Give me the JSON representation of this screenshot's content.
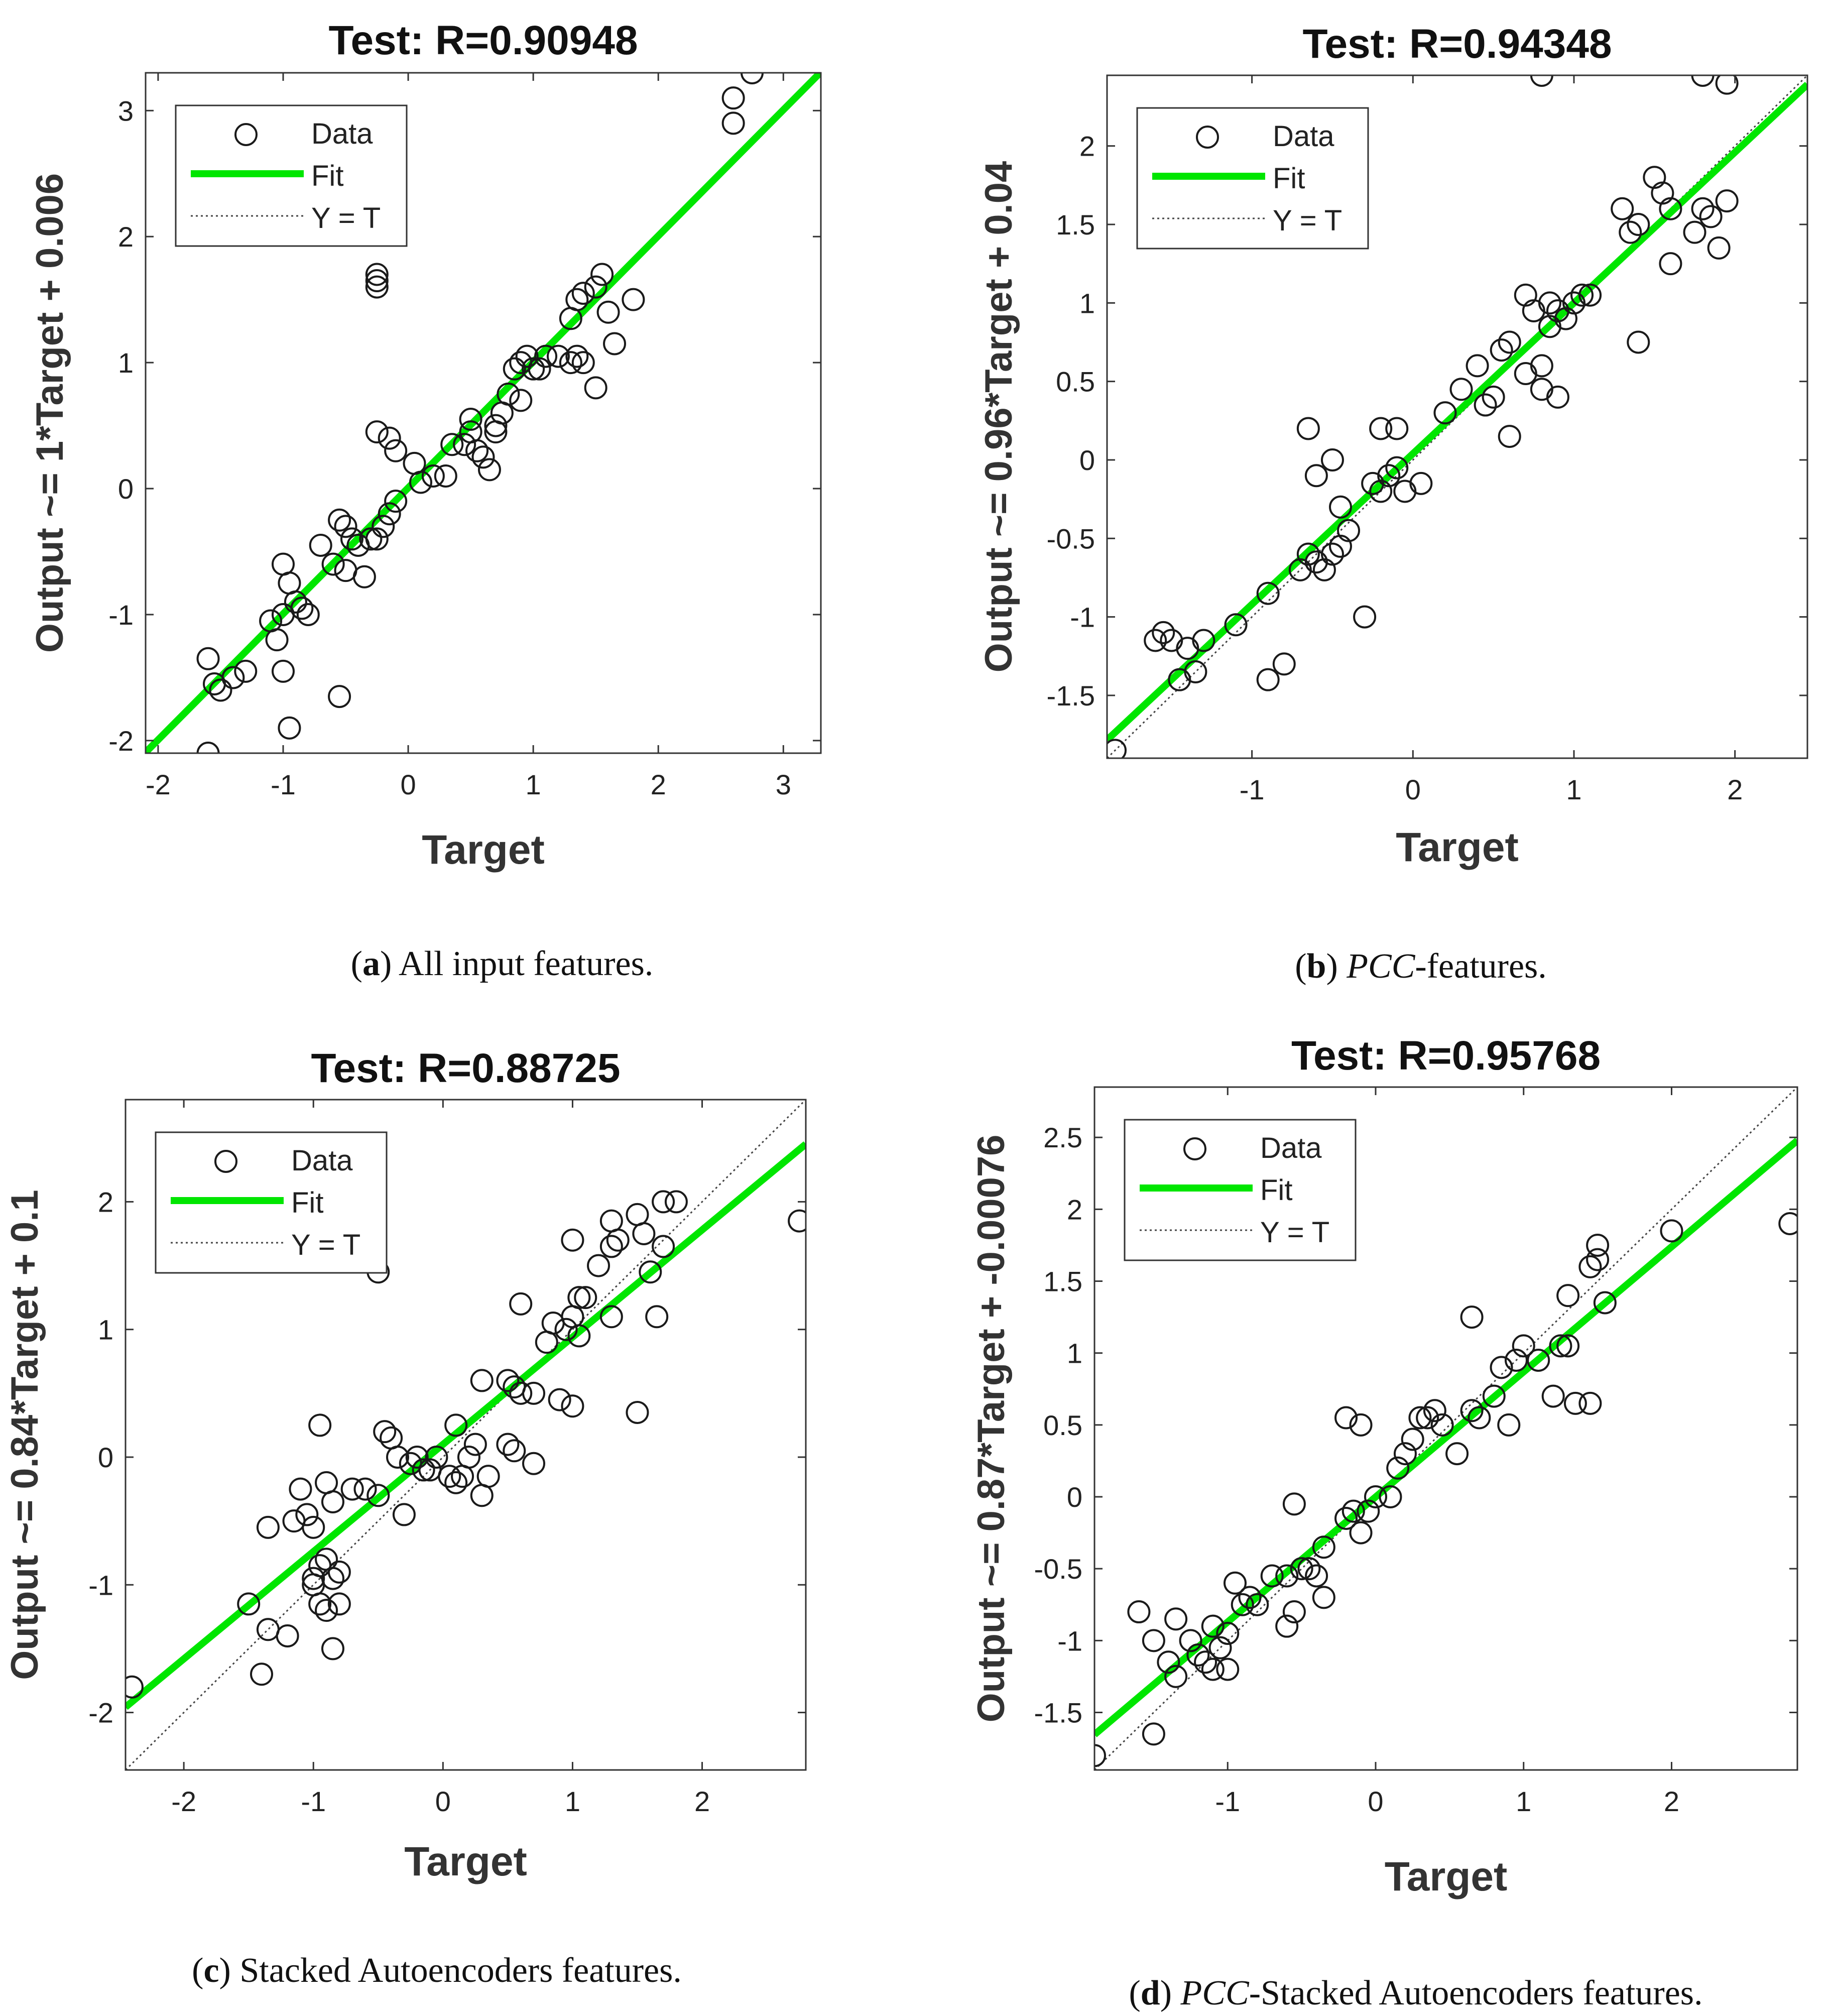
{
  "figure": {
    "colors": {
      "fit": "#00e600",
      "data": "#1a1a1a",
      "identity": "#444444",
      "axis": "#333333"
    }
  },
  "chart_data": [
    {
      "type": "scatter",
      "title": "Test: R=0.90948",
      "xlabel": "Target",
      "ylabel": "Output ~= 1*Target + 0.006",
      "xlim": [
        -2.1,
        3.3
      ],
      "ylim": [
        -2.1,
        3.3
      ],
      "xticks": [
        -2,
        -1,
        0,
        1,
        2,
        3
      ],
      "yticks": [
        -2,
        -1,
        0,
        1,
        2,
        3
      ],
      "legend": {
        "position": "top-left",
        "entries": [
          "Data",
          "Fit",
          "Y = T"
        ]
      },
      "fit": {
        "slope": 1,
        "intercept": 0.006
      },
      "caption": {
        "label": "a",
        "italic": "",
        "text": " All input features."
      },
      "points": [
        [
          -1.6,
          -2.1
        ],
        [
          -1.6,
          -1.35
        ],
        [
          -1.55,
          -1.55
        ],
        [
          -1.5,
          -1.6
        ],
        [
          -1.4,
          -1.5
        ],
        [
          -1.3,
          -1.45
        ],
        [
          -1.1,
          -1.05
        ],
        [
          -1.05,
          -1.2
        ],
        [
          -1.0,
          -1.45
        ],
        [
          -0.95,
          -1.9
        ],
        [
          -1.0,
          -0.6
        ],
        [
          -0.95,
          -0.75
        ],
        [
          -0.9,
          -0.9
        ],
        [
          -1.0,
          -1.0
        ],
        [
          -0.85,
          -0.95
        ],
        [
          -0.8,
          -1.0
        ],
        [
          -0.7,
          -0.45
        ],
        [
          -0.6,
          -0.6
        ],
        [
          -0.55,
          -0.25
        ],
        [
          -0.5,
          -0.3
        ],
        [
          -0.5,
          -0.65
        ],
        [
          -0.45,
          -0.4
        ],
        [
          -0.4,
          -0.45
        ],
        [
          -0.35,
          -0.7
        ],
        [
          -0.3,
          -0.4
        ],
        [
          -0.25,
          -0.4
        ],
        [
          -0.2,
          -0.3
        ],
        [
          -0.15,
          -0.2
        ],
        [
          -0.1,
          -0.1
        ],
        [
          -0.55,
          -1.65
        ],
        [
          -0.25,
          1.6
        ],
        [
          -0.25,
          1.65
        ],
        [
          -0.25,
          1.7
        ],
        [
          -0.25,
          0.45
        ],
        [
          -0.15,
          0.4
        ],
        [
          -0.1,
          0.3
        ],
        [
          0.05,
          0.2
        ],
        [
          0.1,
          0.05
        ],
        [
          0.2,
          0.1
        ],
        [
          0.3,
          0.1
        ],
        [
          0.35,
          0.35
        ],
        [
          0.45,
          0.35
        ],
        [
          0.5,
          0.45
        ],
        [
          0.5,
          0.55
        ],
        [
          0.55,
          0.3
        ],
        [
          0.6,
          0.25
        ],
        [
          0.65,
          0.15
        ],
        [
          0.7,
          0.5
        ],
        [
          0.75,
          0.6
        ],
        [
          0.8,
          0.75
        ],
        [
          0.85,
          0.95
        ],
        [
          0.9,
          1.0
        ],
        [
          0.95,
          1.05
        ],
        [
          1.0,
          0.95
        ],
        [
          1.05,
          0.95
        ],
        [
          1.1,
          1.05
        ],
        [
          0.7,
          0.45
        ],
        [
          0.9,
          0.7
        ],
        [
          1.2,
          1.05
        ],
        [
          1.3,
          1.0
        ],
        [
          1.35,
          1.05
        ],
        [
          1.4,
          1.0
        ],
        [
          1.5,
          0.8
        ],
        [
          1.3,
          1.35
        ],
        [
          1.35,
          1.5
        ],
        [
          1.4,
          1.55
        ],
        [
          1.5,
          1.6
        ],
        [
          1.55,
          1.7
        ],
        [
          1.6,
          1.4
        ],
        [
          1.65,
          1.15
        ],
        [
          1.8,
          1.5
        ],
        [
          2.6,
          2.9
        ],
        [
          2.6,
          3.1
        ],
        [
          2.75,
          3.3
        ]
      ]
    },
    {
      "type": "scatter",
      "title": "Test: R=0.94348",
      "xlabel": "Target",
      "ylabel": "Output ~= 0.96*Target + 0.04",
      "xlim": [
        -1.9,
        2.45
      ],
      "ylim": [
        -1.9,
        2.45
      ],
      "xticks": [
        -1,
        0,
        1,
        2
      ],
      "yticks": [
        -1.5,
        -1,
        -0.5,
        0,
        0.5,
        1,
        1.5,
        2
      ],
      "legend": {
        "position": "top-left",
        "entries": [
          "Data",
          "Fit",
          "Y = T"
        ]
      },
      "fit": {
        "slope": 0.96,
        "intercept": 0.04
      },
      "caption": {
        "label": "b",
        "italic": "PCC",
        "text": "-features."
      },
      "points": [
        [
          -1.85,
          -1.85
        ],
        [
          -1.6,
          -1.15
        ],
        [
          -1.55,
          -1.1
        ],
        [
          -1.5,
          -1.15
        ],
        [
          -1.45,
          -1.4
        ],
        [
          -1.4,
          -1.2
        ],
        [
          -1.35,
          -1.35
        ],
        [
          -1.3,
          -1.15
        ],
        [
          -1.1,
          -1.05
        ],
        [
          -0.9,
          -0.85
        ],
        [
          -0.8,
          -1.3
        ],
        [
          -0.9,
          -1.4
        ],
        [
          -0.7,
          -0.7
        ],
        [
          -0.65,
          -0.6
        ],
        [
          -0.6,
          -0.65
        ],
        [
          -0.55,
          -0.7
        ],
        [
          -0.5,
          -0.6
        ],
        [
          -0.45,
          -0.55
        ],
        [
          -0.4,
          -0.45
        ],
        [
          -0.45,
          -0.3
        ],
        [
          -0.65,
          0.2
        ],
        [
          -0.6,
          -0.1
        ],
        [
          -0.5,
          0.0
        ],
        [
          -0.3,
          -1.0
        ],
        [
          -0.25,
          -0.15
        ],
        [
          -0.2,
          -0.2
        ],
        [
          -0.15,
          -0.1
        ],
        [
          -0.1,
          -0.05
        ],
        [
          -0.05,
          -0.2
        ],
        [
          0.05,
          -0.15
        ],
        [
          -0.2,
          0.2
        ],
        [
          -0.1,
          0.2
        ],
        [
          0.2,
          0.3
        ],
        [
          0.3,
          0.45
        ],
        [
          0.4,
          0.6
        ],
        [
          0.45,
          0.35
        ],
        [
          0.5,
          0.4
        ],
        [
          0.55,
          0.7
        ],
        [
          0.6,
          0.75
        ],
        [
          0.7,
          0.55
        ],
        [
          0.8,
          0.6
        ],
        [
          0.85,
          0.85
        ],
        [
          0.9,
          0.95
        ],
        [
          0.95,
          0.9
        ],
        [
          1.0,
          1.0
        ],
        [
          1.05,
          1.05
        ],
        [
          1.1,
          1.05
        ],
        [
          0.7,
          1.05
        ],
        [
          0.75,
          0.95
        ],
        [
          0.85,
          1.0
        ],
        [
          0.9,
          0.4
        ],
        [
          0.8,
          0.45
        ],
        [
          1.3,
          1.6
        ],
        [
          1.35,
          1.45
        ],
        [
          1.4,
          1.5
        ],
        [
          1.4,
          0.75
        ],
        [
          1.5,
          1.8
        ],
        [
          1.55,
          1.7
        ],
        [
          1.6,
          1.6
        ],
        [
          1.6,
          1.25
        ],
        [
          1.75,
          1.45
        ],
        [
          1.8,
          1.6
        ],
        [
          1.85,
          1.55
        ],
        [
          1.9,
          1.35
        ],
        [
          1.95,
          1.65
        ],
        [
          0.8,
          2.45
        ],
        [
          1.8,
          2.45
        ],
        [
          1.95,
          2.4
        ],
        [
          0.6,
          0.15
        ]
      ]
    },
    {
      "type": "scatter",
      "title": "Test: R=0.88725",
      "xlabel": "Target",
      "ylabel": "Output ~= 0.84*Target + 0.1",
      "xlim": [
        -2.45,
        2.8
      ],
      "ylim": [
        -2.45,
        2.8
      ],
      "xticks": [
        -2,
        -1,
        0,
        1,
        2
      ],
      "yticks": [
        -2,
        -1,
        0,
        1,
        2
      ],
      "legend": {
        "position": "top-left",
        "entries": [
          "Data",
          "Fit",
          "Y = T"
        ]
      },
      "fit": {
        "slope": 0.84,
        "intercept": 0.1
      },
      "caption": {
        "label": "c",
        "italic": "",
        "text": " Stacked Autoencoders features."
      },
      "points": [
        [
          -2.4,
          -1.8
        ],
        [
          -1.5,
          -1.15
        ],
        [
          -1.4,
          -1.7
        ],
        [
          -1.35,
          -1.35
        ],
        [
          -1.35,
          -0.55
        ],
        [
          -1.2,
          -1.4
        ],
        [
          -1.15,
          -0.5
        ],
        [
          -1.1,
          -0.25
        ],
        [
          -1.05,
          -0.45
        ],
        [
          -1.0,
          -0.55
        ],
        [
          -1.0,
          -0.95
        ],
        [
          -1.0,
          -1.0
        ],
        [
          -0.95,
          -1.15
        ],
        [
          -0.95,
          -0.85
        ],
        [
          -0.9,
          -0.8
        ],
        [
          -0.9,
          -1.2
        ],
        [
          -0.85,
          -0.95
        ],
        [
          -0.85,
          -1.5
        ],
        [
          -0.8,
          -1.15
        ],
        [
          -0.8,
          -0.9
        ],
        [
          -0.95,
          0.25
        ],
        [
          -0.9,
          -0.2
        ],
        [
          -0.85,
          -0.35
        ],
        [
          -0.7,
          -0.25
        ],
        [
          -0.6,
          -0.25
        ],
        [
          -0.5,
          -0.3
        ],
        [
          -0.45,
          0.2
        ],
        [
          -0.4,
          0.15
        ],
        [
          -0.35,
          0.0
        ],
        [
          -0.3,
          -0.45
        ],
        [
          -0.25,
          -0.05
        ],
        [
          -0.2,
          0.0
        ],
        [
          -0.15,
          -0.1
        ],
        [
          -0.1,
          -0.1
        ],
        [
          -0.05,
          0.0
        ],
        [
          0.05,
          -0.15
        ],
        [
          0.1,
          -0.2
        ],
        [
          0.15,
          -0.15
        ],
        [
          0.2,
          0.0
        ],
        [
          0.3,
          -0.3
        ],
        [
          0.35,
          -0.15
        ],
        [
          0.1,
          0.25
        ],
        [
          0.25,
          0.1
        ],
        [
          -0.5,
          1.45
        ],
        [
          0.3,
          0.6
        ],
        [
          0.5,
          0.6
        ],
        [
          0.55,
          0.55
        ],
        [
          0.6,
          0.5
        ],
        [
          0.7,
          0.5
        ],
        [
          0.5,
          0.1
        ],
        [
          0.55,
          0.05
        ],
        [
          0.7,
          -0.05
        ],
        [
          0.8,
          0.9
        ],
        [
          0.85,
          1.05
        ],
        [
          0.9,
          0.45
        ],
        [
          1.0,
          0.4
        ],
        [
          0.95,
          1.0
        ],
        [
          1.0,
          1.1
        ],
        [
          1.05,
          1.25
        ],
        [
          1.1,
          1.25
        ],
        [
          1.05,
          0.95
        ],
        [
          1.3,
          1.1
        ],
        [
          1.2,
          1.5
        ],
        [
          1.3,
          1.65
        ],
        [
          1.3,
          1.85
        ],
        [
          1.35,
          1.7
        ],
        [
          1.5,
          1.9
        ],
        [
          1.55,
          1.75
        ],
        [
          1.6,
          1.45
        ],
        [
          1.65,
          1.1
        ],
        [
          1.7,
          1.65
        ],
        [
          1.7,
          2.0
        ],
        [
          1.8,
          2.0
        ],
        [
          1.5,
          0.35
        ],
        [
          1.0,
          1.7
        ],
        [
          0.6,
          1.2
        ],
        [
          2.75,
          1.85
        ]
      ]
    },
    {
      "type": "scatter",
      "title": "Test: R=0.95768",
      "xlabel": "Target",
      "ylabel": "Output ~= 0.87*Target + -0.00076",
      "xlim": [
        -1.9,
        2.85
      ],
      "ylim": [
        -1.9,
        2.85
      ],
      "xticks": [
        -1,
        0,
        1,
        2
      ],
      "yticks": [
        -1.5,
        -1,
        -0.5,
        0,
        0.5,
        1,
        1.5,
        2,
        2.5
      ],
      "legend": {
        "position": "top-left",
        "entries": [
          "Data",
          "Fit",
          "Y = T"
        ]
      },
      "fit": {
        "slope": 0.87,
        "intercept": -0.00076
      },
      "caption": {
        "label": "d",
        "italic": "PCC",
        "text": "-Stacked Autoencoders features."
      },
      "points": [
        [
          -1.9,
          -1.8
        ],
        [
          -1.6,
          -0.8
        ],
        [
          -1.5,
          -1.0
        ],
        [
          -1.5,
          -1.65
        ],
        [
          -1.4,
          -1.15
        ],
        [
          -1.35,
          -1.25
        ],
        [
          -1.35,
          -0.85
        ],
        [
          -1.25,
          -1.0
        ],
        [
          -1.2,
          -1.1
        ],
        [
          -1.15,
          -1.15
        ],
        [
          -1.1,
          -1.2
        ],
        [
          -1.1,
          -0.9
        ],
        [
          -1.05,
          -1.05
        ],
        [
          -1.0,
          -0.95
        ],
        [
          -1.0,
          -1.2
        ],
        [
          -0.95,
          -0.6
        ],
        [
          -0.9,
          -0.75
        ],
        [
          -0.85,
          -0.7
        ],
        [
          -0.8,
          -0.75
        ],
        [
          -0.7,
          -0.55
        ],
        [
          -0.6,
          -0.55
        ],
        [
          -0.6,
          -0.9
        ],
        [
          -0.55,
          -0.8
        ],
        [
          -0.5,
          -0.5
        ],
        [
          -0.45,
          -0.5
        ],
        [
          -0.4,
          -0.55
        ],
        [
          -0.35,
          -0.7
        ],
        [
          -0.55,
          -0.05
        ],
        [
          -0.35,
          -0.35
        ],
        [
          -0.2,
          -0.15
        ],
        [
          -0.15,
          -0.1
        ],
        [
          -0.1,
          -0.25
        ],
        [
          -0.05,
          -0.1
        ],
        [
          0.0,
          0.0
        ],
        [
          0.1,
          0.0
        ],
        [
          0.15,
          0.2
        ],
        [
          0.2,
          0.3
        ],
        [
          0.25,
          0.4
        ],
        [
          0.3,
          0.55
        ],
        [
          0.35,
          0.55
        ],
        [
          0.4,
          0.6
        ],
        [
          0.45,
          0.5
        ],
        [
          -0.2,
          0.55
        ],
        [
          -0.1,
          0.5
        ],
        [
          0.55,
          0.3
        ],
        [
          0.65,
          0.6
        ],
        [
          0.7,
          0.55
        ],
        [
          0.8,
          0.7
        ],
        [
          0.85,
          0.9
        ],
        [
          0.9,
          0.5
        ],
        [
          0.95,
          0.95
        ],
        [
          1.0,
          1.05
        ],
        [
          1.1,
          0.95
        ],
        [
          1.25,
          1.05
        ],
        [
          1.3,
          1.05
        ],
        [
          1.35,
          0.65
        ],
        [
          1.45,
          0.65
        ],
        [
          1.3,
          1.4
        ],
        [
          1.45,
          1.6
        ],
        [
          1.5,
          1.65
        ],
        [
          1.5,
          1.75
        ],
        [
          1.55,
          1.35
        ],
        [
          1.2,
          0.7
        ],
        [
          0.65,
          1.25
        ],
        [
          2.0,
          1.85
        ],
        [
          2.8,
          1.9
        ]
      ]
    }
  ]
}
